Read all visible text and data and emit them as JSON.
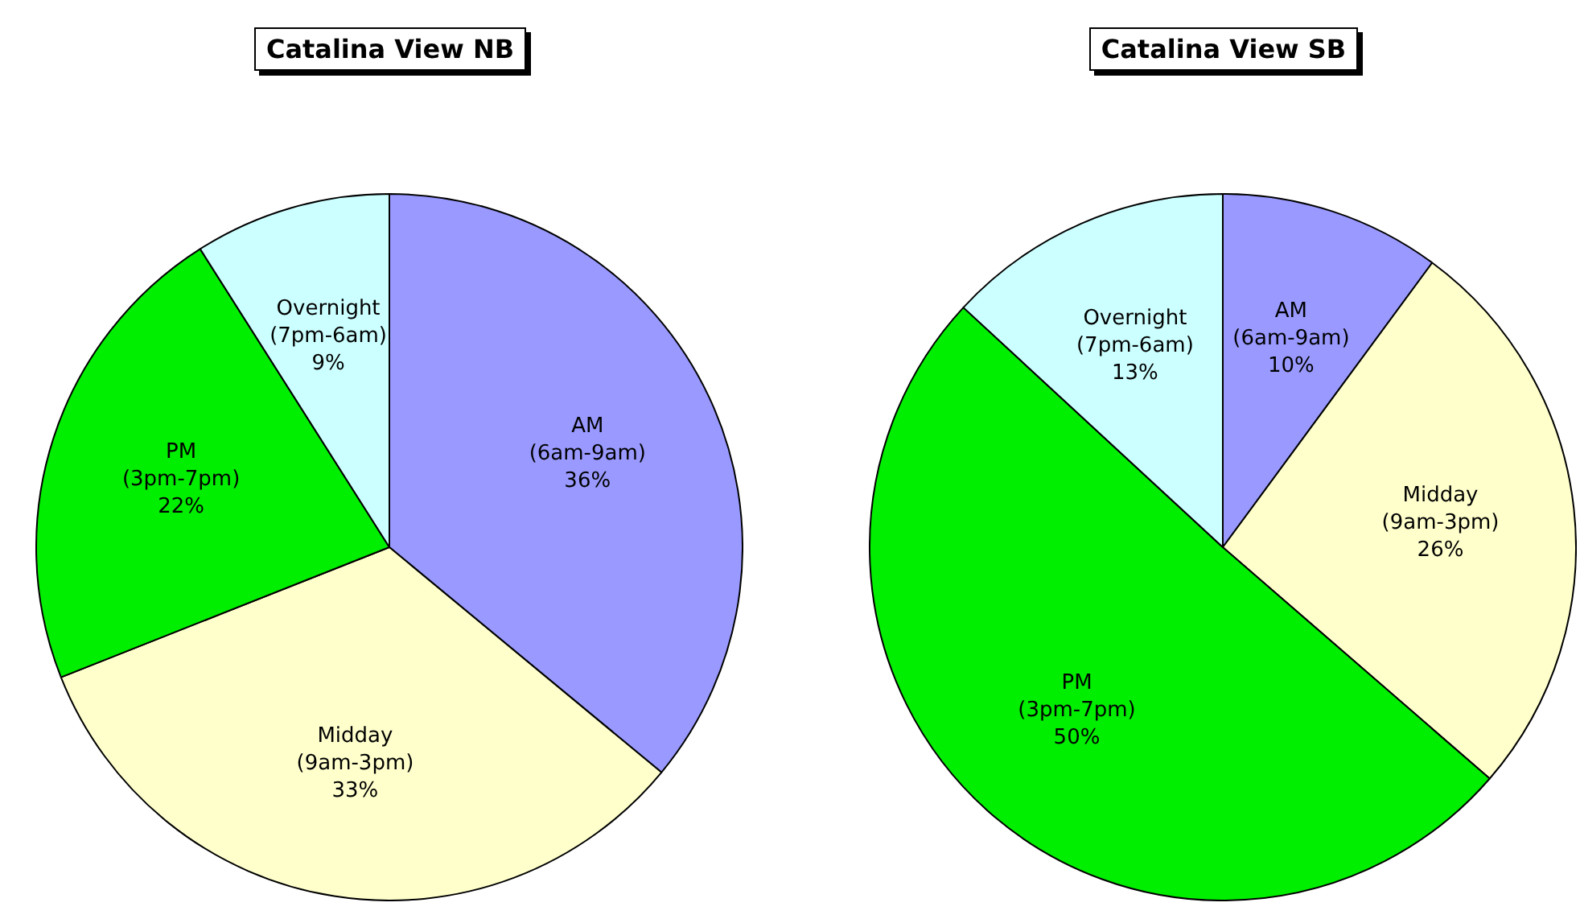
{
  "chart_data": [
    {
      "type": "pie",
      "title": "Catalina View NB",
      "categories": [
        "AM (6am-9am)",
        "Midday (9am-3pm)",
        "PM (3pm-7pm)",
        "Overnight (7pm-6am)"
      ],
      "values": [
        36,
        33,
        22,
        9
      ],
      "value_labels": [
        "36%",
        "33%",
        "22%",
        "9%"
      ],
      "colors": [
        "#9999ff",
        "#ffffcc",
        "#00ee00",
        "#ccffff"
      ],
      "legend": false
    },
    {
      "type": "pie",
      "title": "Catalina View SB",
      "categories": [
        "AM (6am-9am)",
        "Midday (9am-3pm)",
        "PM (3pm-7pm)",
        "Overnight (7pm-6am)"
      ],
      "values": [
        10,
        26,
        50,
        13
      ],
      "value_labels": [
        "10%",
        "26%",
        "50%",
        "13%"
      ],
      "colors": [
        "#9999ff",
        "#ffffcc",
        "#00ee00",
        "#ccffff"
      ],
      "legend": false
    }
  ]
}
